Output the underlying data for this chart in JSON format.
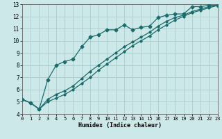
{
  "xlabel": "Humidex (Indice chaleur)",
  "bg_color": "#cce8e8",
  "grid_color": "#aacccc",
  "line_color": "#1a6b6b",
  "markersize": 2.5,
  "linewidth": 0.9,
  "xlim": [
    0,
    23
  ],
  "ylim": [
    4,
    13
  ],
  "xticks": [
    0,
    1,
    2,
    3,
    4,
    5,
    6,
    7,
    8,
    9,
    10,
    11,
    12,
    13,
    14,
    15,
    16,
    17,
    18,
    19,
    20,
    21,
    22,
    23
  ],
  "yticks": [
    4,
    5,
    6,
    7,
    8,
    9,
    10,
    11,
    12,
    13
  ],
  "line1_x": [
    0,
    1,
    2,
    3,
    4,
    5,
    6,
    7,
    8,
    9,
    10,
    11,
    12,
    13,
    14,
    15,
    16,
    17,
    18,
    19,
    20,
    21,
    22,
    23
  ],
  "line1_y": [
    5.2,
    4.9,
    4.4,
    6.8,
    8.0,
    8.3,
    8.5,
    9.5,
    10.3,
    10.5,
    10.9,
    10.9,
    11.3,
    10.9,
    11.1,
    11.2,
    11.9,
    12.1,
    12.2,
    12.2,
    12.8,
    12.8,
    12.9,
    12.9
  ],
  "line2_x": [
    0,
    1,
    2,
    3,
    4,
    5,
    6,
    7,
    8,
    9,
    10,
    11,
    12,
    13,
    14,
    15,
    16,
    17,
    18,
    19,
    20,
    21,
    22,
    23
  ],
  "line2_y": [
    5.2,
    4.9,
    4.4,
    5.2,
    5.6,
    5.9,
    6.3,
    6.9,
    7.5,
    8.0,
    8.5,
    9.0,
    9.5,
    9.9,
    10.3,
    10.7,
    11.2,
    11.6,
    11.9,
    12.1,
    12.4,
    12.6,
    12.8,
    12.9
  ],
  "line3_x": [
    0,
    1,
    2,
    3,
    4,
    5,
    6,
    7,
    8,
    9,
    10,
    11,
    12,
    13,
    14,
    15,
    16,
    17,
    18,
    19,
    20,
    21,
    22,
    23
  ],
  "line3_y": [
    5.2,
    4.9,
    4.4,
    5.0,
    5.3,
    5.6,
    6.0,
    6.5,
    7.0,
    7.6,
    8.1,
    8.6,
    9.1,
    9.6,
    10.0,
    10.4,
    10.9,
    11.3,
    11.7,
    12.0,
    12.3,
    12.5,
    12.7,
    12.9
  ]
}
